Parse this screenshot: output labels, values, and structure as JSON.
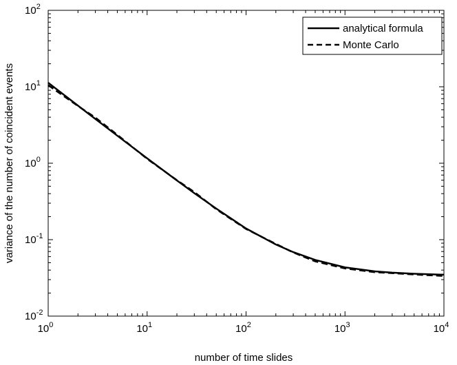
{
  "chart_data": {
    "type": "line",
    "title": "",
    "xlabel": "number of time slides",
    "ylabel": "variance of the number of coincident events",
    "xscale": "log",
    "yscale": "log",
    "xlim": [
      1,
      10000
    ],
    "ylim": [
      0.01,
      100
    ],
    "grid": false,
    "legend_position": "top-right",
    "x_tick_labels": [
      {
        "base": "10",
        "exp": "0"
      },
      {
        "base": "10",
        "exp": "1"
      },
      {
        "base": "10",
        "exp": "2"
      },
      {
        "base": "10",
        "exp": "3"
      },
      {
        "base": "10",
        "exp": "4"
      }
    ],
    "y_tick_labels": [
      {
        "base": "10",
        "exp": "-2"
      },
      {
        "base": "10",
        "exp": "-1"
      },
      {
        "base": "10",
        "exp": "0"
      },
      {
        "base": "10",
        "exp": "1"
      },
      {
        "base": "10",
        "exp": "2"
      }
    ],
    "series": [
      {
        "name": "analytical formula",
        "style": "solid",
        "color": "#000000",
        "x": [
          1,
          2,
          3,
          5,
          10,
          20,
          30,
          50,
          100,
          200,
          300,
          500,
          1000,
          2000,
          3000,
          5000,
          10000
        ],
        "y": [
          11.3,
          5.67,
          3.79,
          2.29,
          1.16,
          0.595,
          0.406,
          0.255,
          0.14,
          0.0865,
          0.0687,
          0.0543,
          0.0434,
          0.0385,
          0.037,
          0.0358,
          0.0348
        ]
      },
      {
        "name": "Monte Carlo",
        "style": "dashed",
        "color": "#000000",
        "x": [
          1,
          2,
          3,
          5,
          10,
          20,
          30,
          50,
          100,
          200,
          300,
          500,
          1000,
          2000,
          3000,
          5000,
          10000
        ],
        "y": [
          10.5,
          5.6,
          3.95,
          2.35,
          1.14,
          0.6,
          0.42,
          0.25,
          0.138,
          0.088,
          0.068,
          0.052,
          0.042,
          0.0375,
          0.0365,
          0.035,
          0.0335
        ]
      }
    ]
  }
}
